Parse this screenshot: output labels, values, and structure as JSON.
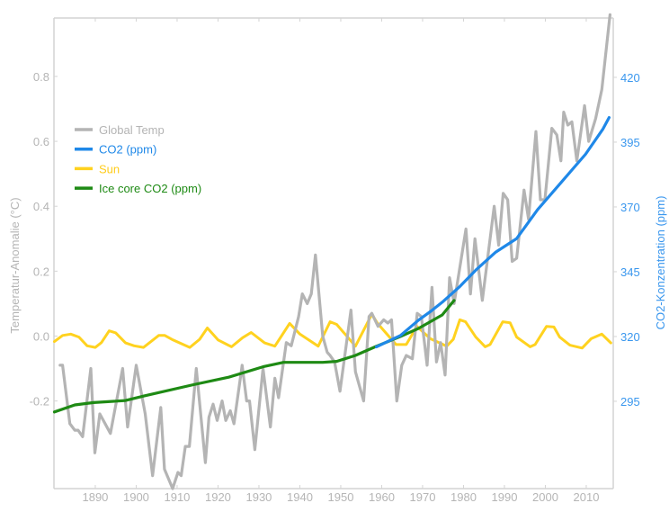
{
  "chart_data": {
    "type": "line",
    "title": "",
    "xlabel": "",
    "ylabel": "Temperatur-Anomalie (°C)",
    "ylabel_right": "CO2-Konzentration (ppm)",
    "xlim": [
      1879.9,
      2016.6
    ],
    "ylim": [
      -0.47,
      0.98
    ],
    "ylim_right": [
      261.3,
      442.9
    ],
    "grid": false,
    "legend_placement": "upper-left",
    "x_ticks": [
      "1890",
      "1900",
      "1910",
      "1920",
      "1930",
      "1940",
      "1950",
      "1960",
      "1970",
      "1980",
      "1990",
      "2000",
      "2010"
    ],
    "y_ticks": [
      "-0.2",
      "0.0",
      "0.2",
      "0.4",
      "0.6",
      "0.8"
    ],
    "y_ticks_right": [
      "295",
      "320",
      "345",
      "370",
      "395",
      "420"
    ],
    "series": [
      {
        "name": "Global Temp",
        "axis": "left",
        "color": "#b4b4b4",
        "points": [
          [
            1881.4,
            -0.09
          ],
          [
            1882,
            -0.09
          ],
          [
            1883.8,
            -0.27
          ],
          [
            1885,
            -0.29
          ],
          [
            1885.8,
            -0.29
          ],
          [
            1886.9,
            -0.31
          ],
          [
            1888.9,
            -0.1
          ],
          [
            1889.9,
            -0.36
          ],
          [
            1891.1,
            -0.24
          ],
          [
            1893.7,
            -0.3
          ],
          [
            1896.7,
            -0.1
          ],
          [
            1897.9,
            -0.28
          ],
          [
            1900,
            -0.09
          ],
          [
            1902.2,
            -0.24
          ],
          [
            1904,
            -0.43
          ],
          [
            1906,
            -0.22
          ],
          [
            1906.9,
            -0.41
          ],
          [
            1908.9,
            -0.47
          ],
          [
            1910.2,
            -0.42
          ],
          [
            1911,
            -0.43
          ],
          [
            1912,
            -0.34
          ],
          [
            1913,
            -0.34
          ],
          [
            1914.7,
            -0.1
          ],
          [
            1916.9,
            -0.39
          ],
          [
            1917.8,
            -0.25
          ],
          [
            1918.8,
            -0.21
          ],
          [
            1919.8,
            -0.26
          ],
          [
            1921,
            -0.2
          ],
          [
            1921.9,
            -0.26
          ],
          [
            1923,
            -0.23
          ],
          [
            1923.9,
            -0.27
          ],
          [
            1925.9,
            -0.09
          ],
          [
            1927,
            -0.2
          ],
          [
            1927.7,
            -0.2
          ],
          [
            1929,
            -0.35
          ],
          [
            1931,
            -0.1
          ],
          [
            1932.8,
            -0.28
          ],
          [
            1933.9,
            -0.13
          ],
          [
            1934.8,
            -0.19
          ],
          [
            1936.7,
            -0.02
          ],
          [
            1937.9,
            -0.03
          ],
          [
            1939.7,
            0.06
          ],
          [
            1940.6,
            0.13
          ],
          [
            1941.8,
            0.1
          ],
          [
            1942.8,
            0.13
          ],
          [
            1943.8,
            0.25
          ],
          [
            1945.6,
            0.0
          ],
          [
            1946.7,
            -0.05
          ],
          [
            1947.4,
            -0.06
          ],
          [
            1948.5,
            -0.08
          ],
          [
            1949.8,
            -0.17
          ],
          [
            1952.5,
            0.08
          ],
          [
            1953.6,
            -0.11
          ],
          [
            1955.6,
            -0.2
          ],
          [
            1956.9,
            0.06
          ],
          [
            1957.6,
            0.07
          ],
          [
            1959.1,
            0.03
          ],
          [
            1960.5,
            0.05
          ],
          [
            1961.5,
            0.04
          ],
          [
            1962.4,
            0.05
          ],
          [
            1963.7,
            -0.2
          ],
          [
            1964.9,
            -0.09
          ],
          [
            1966,
            -0.06
          ],
          [
            1967.5,
            -0.07
          ],
          [
            1968.7,
            0.07
          ],
          [
            1969.7,
            0.06
          ],
          [
            1971.1,
            -0.09
          ],
          [
            1972.3,
            0.15
          ],
          [
            1973.4,
            -0.08
          ],
          [
            1974.4,
            -0.02
          ],
          [
            1975.5,
            -0.12
          ],
          [
            1976.6,
            0.18
          ],
          [
            1977.7,
            0.1
          ],
          [
            1980.6,
            0.33
          ],
          [
            1981.7,
            0.13
          ],
          [
            1982.8,
            0.3
          ],
          [
            1984.6,
            0.11
          ],
          [
            1987.5,
            0.4
          ],
          [
            1988.6,
            0.28
          ],
          [
            1989.7,
            0.44
          ],
          [
            1990.8,
            0.42
          ],
          [
            1991.9,
            0.23
          ],
          [
            1993,
            0.24
          ],
          [
            1994.8,
            0.45
          ],
          [
            1995.9,
            0.36
          ],
          [
            1997.7,
            0.63
          ],
          [
            1998.8,
            0.42
          ],
          [
            1999.9,
            0.42
          ],
          [
            2001.6,
            0.64
          ],
          [
            2002.8,
            0.62
          ],
          [
            2003.8,
            0.54
          ],
          [
            2004.5,
            0.69
          ],
          [
            2005.5,
            0.65
          ],
          [
            2006.5,
            0.66
          ],
          [
            2007.7,
            0.54
          ],
          [
            2009.6,
            0.71
          ],
          [
            2010.6,
            0.6
          ],
          [
            2012.3,
            0.67
          ],
          [
            2013.8,
            0.76
          ],
          [
            2015.8,
            0.99
          ]
        ]
      },
      {
        "name": "CO2 (ppm)",
        "axis": "right",
        "color": "#1f88e8",
        "points": [
          [
            1958.7,
            316.0
          ],
          [
            1964.6,
            320.4
          ],
          [
            1969,
            326.3
          ],
          [
            1971.8,
            329.5
          ],
          [
            1975,
            333.5
          ],
          [
            1979.1,
            339.3
          ],
          [
            1983,
            345.6
          ],
          [
            1987.9,
            352.6
          ],
          [
            1993,
            357.8
          ],
          [
            1998.1,
            368.9
          ],
          [
            2004.7,
            381.0
          ],
          [
            2009.8,
            390.3
          ],
          [
            2014.1,
            400.1
          ],
          [
            2015.6,
            404.5
          ]
        ]
      },
      {
        "name": "Sun",
        "axis": "left",
        "color": "#ffd21f",
        "points": [
          [
            1880,
            -0.017
          ],
          [
            1882,
            0.002
          ],
          [
            1884,
            0.006
          ],
          [
            1886,
            -0.003
          ],
          [
            1888,
            -0.03
          ],
          [
            1890,
            -0.035
          ],
          [
            1891.5,
            -0.02
          ],
          [
            1893.4,
            0.016
          ],
          [
            1895,
            0.01
          ],
          [
            1897.4,
            -0.021
          ],
          [
            1899.5,
            -0.03
          ],
          [
            1901.8,
            -0.035
          ],
          [
            1905.5,
            0.002
          ],
          [
            1907,
            0.002
          ],
          [
            1909,
            -0.012
          ],
          [
            1913.1,
            -0.035
          ],
          [
            1915.5,
            -0.01
          ],
          [
            1917.4,
            0.025
          ],
          [
            1920,
            -0.012
          ],
          [
            1923.3,
            -0.033
          ],
          [
            1926,
            -0.005
          ],
          [
            1928.1,
            0.011
          ],
          [
            1931.4,
            -0.021
          ],
          [
            1933.9,
            -0.031
          ],
          [
            1937.5,
            0.039
          ],
          [
            1940,
            0.006
          ],
          [
            1944.5,
            -0.031
          ],
          [
            1947.4,
            0.044
          ],
          [
            1949,
            0.036
          ],
          [
            1953.6,
            -0.031
          ],
          [
            1957.6,
            0.067
          ],
          [
            1959,
            0.039
          ],
          [
            1963.5,
            -0.026
          ],
          [
            1966,
            -0.026
          ],
          [
            1968.6,
            0.03
          ],
          [
            1971.9,
            -0.008
          ],
          [
            1975.9,
            -0.031
          ],
          [
            1977.5,
            -0.01
          ],
          [
            1979.1,
            0.05
          ],
          [
            1980.5,
            0.044
          ],
          [
            1983,
            -0.003
          ],
          [
            1985.3,
            -0.033
          ],
          [
            1986.5,
            -0.026
          ],
          [
            1989.6,
            0.044
          ],
          [
            1991.4,
            0.041
          ],
          [
            1993,
            -0.003
          ],
          [
            1996.3,
            -0.033
          ],
          [
            1997.5,
            -0.026
          ],
          [
            2000.3,
            0.03
          ],
          [
            2002.1,
            0.028
          ],
          [
            2003.5,
            -0.003
          ],
          [
            2006,
            -0.028
          ],
          [
            2009,
            -0.037
          ],
          [
            2011.2,
            -0.008
          ],
          [
            2013.8,
            0.006
          ],
          [
            2016,
            -0.021
          ]
        ]
      },
      {
        "name": "Ice core CO2 (ppm)",
        "axis": "right",
        "color": "#1e8a14",
        "points": [
          [
            1880,
            290.9
          ],
          [
            1885,
            293.6
          ],
          [
            1889.6,
            294.5
          ],
          [
            1897.4,
            295.3
          ],
          [
            1902,
            297.1
          ],
          [
            1914,
            301.4
          ],
          [
            1922.6,
            304.3
          ],
          [
            1931,
            308.3
          ],
          [
            1936,
            310.0
          ],
          [
            1945.6,
            310.0
          ],
          [
            1949,
            310.4
          ],
          [
            1953.6,
            312.7
          ],
          [
            1958.7,
            316.2
          ],
          [
            1964.6,
            320.0
          ],
          [
            1969,
            323.1
          ],
          [
            1974.8,
            328.3
          ],
          [
            1977.7,
            333.9
          ]
        ]
      }
    ]
  }
}
